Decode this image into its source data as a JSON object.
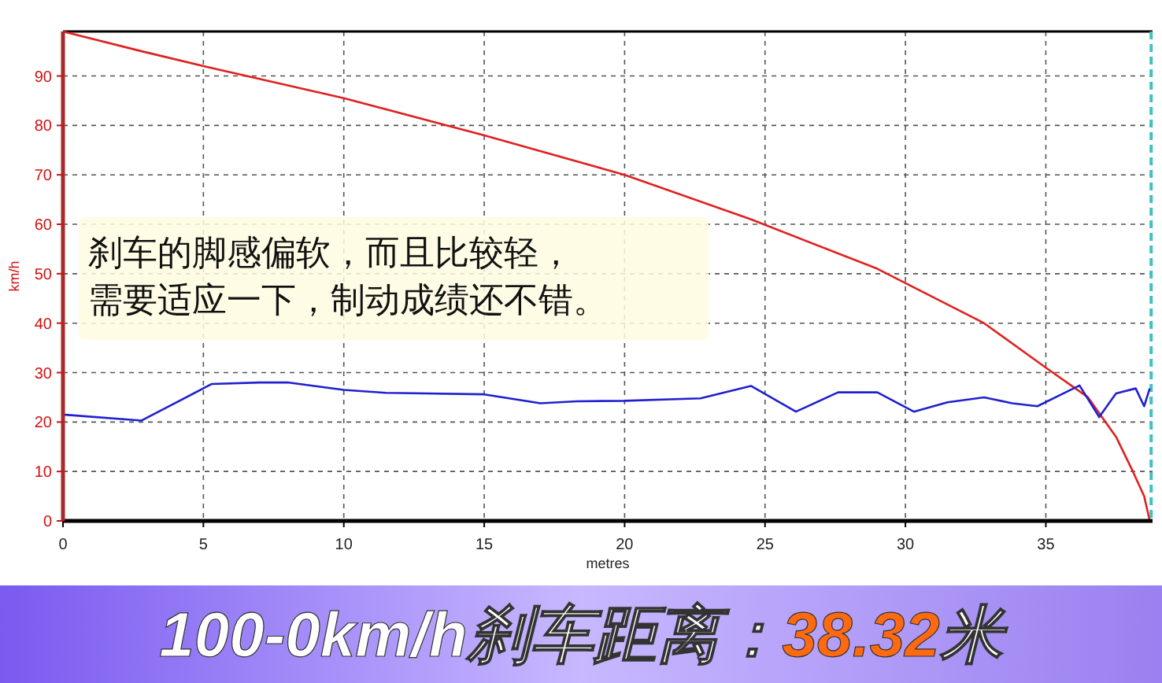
{
  "chart_data": {
    "type": "line",
    "title": "100-0km/h刹车距离：38.32米",
    "xlabel": "metres",
    "ylabel": "km/h",
    "annotations": [
      "刹车的脚感偏软，而且比较轻，",
      "需要适应一下，制动成绩还不错。"
    ],
    "xlim": [
      0,
      38.8
    ],
    "xticks": [
      0,
      5,
      10,
      15,
      20,
      25,
      30,
      35
    ],
    "ylim": [
      0,
      99
    ],
    "yticks": [
      0,
      10,
      20,
      30,
      40,
      50,
      60,
      70,
      80,
      90
    ],
    "grid": true,
    "ref_lines": [
      {
        "axis": "x",
        "value": 38.75,
        "color": "#40c0c0",
        "line_style": "dashed"
      }
    ],
    "series": [
      {
        "color": "#e02020",
        "x": [
          0,
          2.8,
          5,
          10,
          15,
          20,
          24.5,
          29,
          32.8,
          35,
          36.5,
          37.5,
          38.1,
          38.5,
          38.7
        ],
        "values": [
          99,
          95,
          92,
          85.5,
          78,
          70,
          61,
          51,
          40,
          31,
          25,
          17,
          10,
          5,
          0
        ]
      },
      {
        "color": "#2020d0",
        "x": [
          0,
          2.8,
          5.3,
          7,
          8,
          10,
          11.5,
          15,
          17,
          18.3,
          20,
          22.7,
          24.5,
          26.1,
          27.6,
          29,
          30.3,
          31.5,
          32.8,
          33.8,
          34.7,
          36.2,
          36.9,
          37.5,
          38.2,
          38.5,
          38.7
        ],
        "values": [
          21.5,
          20.3,
          27.7,
          28,
          28,
          26.5,
          25.9,
          25.6,
          23.8,
          24.2,
          24.3,
          24.8,
          27.3,
          22.1,
          26,
          26,
          22.1,
          24,
          25,
          23.8,
          23.2,
          27.4,
          21,
          25.8,
          26.8,
          23.2,
          26.8
        ]
      }
    ]
  }
}
